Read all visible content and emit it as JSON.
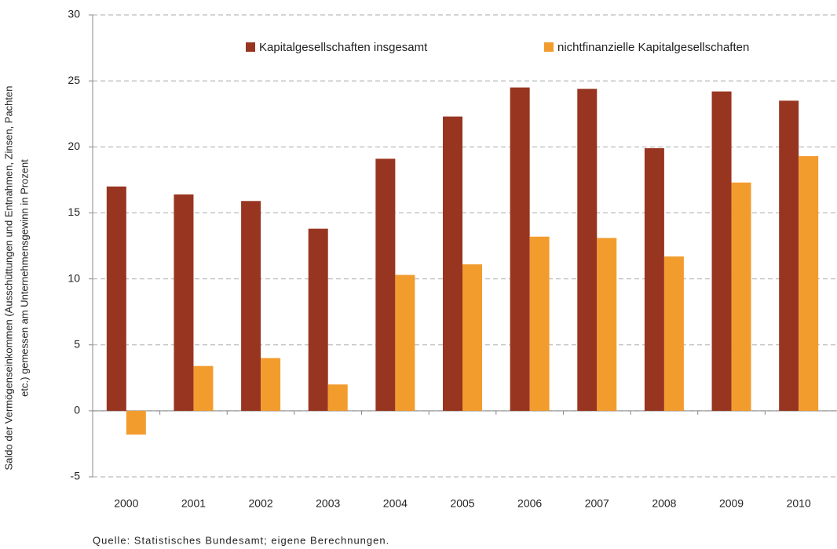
{
  "chart_data": {
    "type": "bar",
    "ylabel": [
      "Saldo der Vermögenseinkommen (Ausschüttungen und Entnahmen, Zinsen, Pachten",
      "etc.) gemessen am Unternehmensgewinn in Prozent"
    ],
    "source": "Quelle: Statistisches Bundesamt; eigene Berechnungen.",
    "categories": [
      "2000",
      "2001",
      "2002",
      "2003",
      "2004",
      "2005",
      "2006",
      "2007",
      "2008",
      "2009",
      "2010"
    ],
    "series": [
      {
        "name": "Kapitalgesellschaften insgesamt",
        "color": "#983520",
        "values": [
          17.0,
          16.4,
          15.9,
          13.8,
          19.1,
          22.3,
          24.5,
          24.4,
          19.9,
          24.2,
          23.5
        ]
      },
      {
        "name": "nichtfinanzielle Kapitalgesellschaften",
        "color": "#f39c2e",
        "values": [
          -1.8,
          3.4,
          4.0,
          2.0,
          10.3,
          11.1,
          13.2,
          13.1,
          11.7,
          17.3,
          19.3
        ]
      }
    ],
    "ylim": [
      -5,
      30
    ],
    "yticks": [
      -5,
      0,
      5,
      10,
      15,
      20,
      25,
      30
    ],
    "grid": true,
    "legend": "top"
  }
}
